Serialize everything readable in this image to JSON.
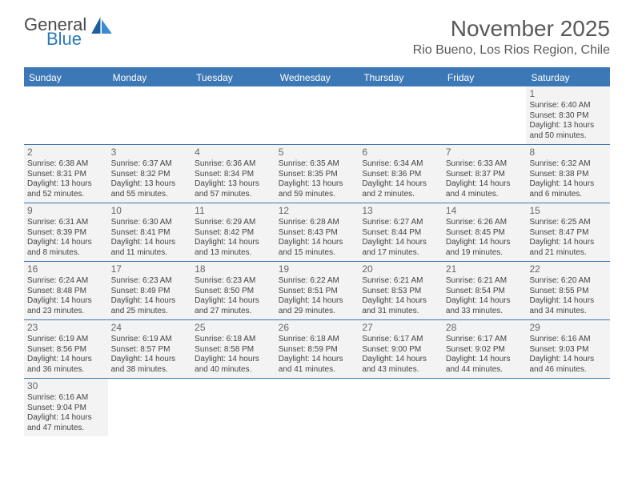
{
  "logo": {
    "text1": "General",
    "text2": "Blue"
  },
  "title": "November 2025",
  "location": "Rio Bueno, Los Rios Region, Chile",
  "colors": {
    "header_bg": "#3b78b5",
    "cell_bg": "#f3f3f3",
    "text": "#444444",
    "title_color": "#595959"
  },
  "day_labels": [
    "Sunday",
    "Monday",
    "Tuesday",
    "Wednesday",
    "Thursday",
    "Friday",
    "Saturday"
  ],
  "weeks": [
    [
      null,
      null,
      null,
      null,
      null,
      null,
      {
        "n": "1",
        "sr": "Sunrise: 6:40 AM",
        "ss": "Sunset: 8:30 PM",
        "dl": "Daylight: 13 hours and 50 minutes."
      }
    ],
    [
      {
        "n": "2",
        "sr": "Sunrise: 6:38 AM",
        "ss": "Sunset: 8:31 PM",
        "dl": "Daylight: 13 hours and 52 minutes."
      },
      {
        "n": "3",
        "sr": "Sunrise: 6:37 AM",
        "ss": "Sunset: 8:32 PM",
        "dl": "Daylight: 13 hours and 55 minutes."
      },
      {
        "n": "4",
        "sr": "Sunrise: 6:36 AM",
        "ss": "Sunset: 8:34 PM",
        "dl": "Daylight: 13 hours and 57 minutes."
      },
      {
        "n": "5",
        "sr": "Sunrise: 6:35 AM",
        "ss": "Sunset: 8:35 PM",
        "dl": "Daylight: 13 hours and 59 minutes."
      },
      {
        "n": "6",
        "sr": "Sunrise: 6:34 AM",
        "ss": "Sunset: 8:36 PM",
        "dl": "Daylight: 14 hours and 2 minutes."
      },
      {
        "n": "7",
        "sr": "Sunrise: 6:33 AM",
        "ss": "Sunset: 8:37 PM",
        "dl": "Daylight: 14 hours and 4 minutes."
      },
      {
        "n": "8",
        "sr": "Sunrise: 6:32 AM",
        "ss": "Sunset: 8:38 PM",
        "dl": "Daylight: 14 hours and 6 minutes."
      }
    ],
    [
      {
        "n": "9",
        "sr": "Sunrise: 6:31 AM",
        "ss": "Sunset: 8:39 PM",
        "dl": "Daylight: 14 hours and 8 minutes."
      },
      {
        "n": "10",
        "sr": "Sunrise: 6:30 AM",
        "ss": "Sunset: 8:41 PM",
        "dl": "Daylight: 14 hours and 11 minutes."
      },
      {
        "n": "11",
        "sr": "Sunrise: 6:29 AM",
        "ss": "Sunset: 8:42 PM",
        "dl": "Daylight: 14 hours and 13 minutes."
      },
      {
        "n": "12",
        "sr": "Sunrise: 6:28 AM",
        "ss": "Sunset: 8:43 PM",
        "dl": "Daylight: 14 hours and 15 minutes."
      },
      {
        "n": "13",
        "sr": "Sunrise: 6:27 AM",
        "ss": "Sunset: 8:44 PM",
        "dl": "Daylight: 14 hours and 17 minutes."
      },
      {
        "n": "14",
        "sr": "Sunrise: 6:26 AM",
        "ss": "Sunset: 8:45 PM",
        "dl": "Daylight: 14 hours and 19 minutes."
      },
      {
        "n": "15",
        "sr": "Sunrise: 6:25 AM",
        "ss": "Sunset: 8:47 PM",
        "dl": "Daylight: 14 hours and 21 minutes."
      }
    ],
    [
      {
        "n": "16",
        "sr": "Sunrise: 6:24 AM",
        "ss": "Sunset: 8:48 PM",
        "dl": "Daylight: 14 hours and 23 minutes."
      },
      {
        "n": "17",
        "sr": "Sunrise: 6:23 AM",
        "ss": "Sunset: 8:49 PM",
        "dl": "Daylight: 14 hours and 25 minutes."
      },
      {
        "n": "18",
        "sr": "Sunrise: 6:23 AM",
        "ss": "Sunset: 8:50 PM",
        "dl": "Daylight: 14 hours and 27 minutes."
      },
      {
        "n": "19",
        "sr": "Sunrise: 6:22 AM",
        "ss": "Sunset: 8:51 PM",
        "dl": "Daylight: 14 hours and 29 minutes."
      },
      {
        "n": "20",
        "sr": "Sunrise: 6:21 AM",
        "ss": "Sunset: 8:53 PM",
        "dl": "Daylight: 14 hours and 31 minutes."
      },
      {
        "n": "21",
        "sr": "Sunrise: 6:21 AM",
        "ss": "Sunset: 8:54 PM",
        "dl": "Daylight: 14 hours and 33 minutes."
      },
      {
        "n": "22",
        "sr": "Sunrise: 6:20 AM",
        "ss": "Sunset: 8:55 PM",
        "dl": "Daylight: 14 hours and 34 minutes."
      }
    ],
    [
      {
        "n": "23",
        "sr": "Sunrise: 6:19 AM",
        "ss": "Sunset: 8:56 PM",
        "dl": "Daylight: 14 hours and 36 minutes."
      },
      {
        "n": "24",
        "sr": "Sunrise: 6:19 AM",
        "ss": "Sunset: 8:57 PM",
        "dl": "Daylight: 14 hours and 38 minutes."
      },
      {
        "n": "25",
        "sr": "Sunrise: 6:18 AM",
        "ss": "Sunset: 8:58 PM",
        "dl": "Daylight: 14 hours and 40 minutes."
      },
      {
        "n": "26",
        "sr": "Sunrise: 6:18 AM",
        "ss": "Sunset: 8:59 PM",
        "dl": "Daylight: 14 hours and 41 minutes."
      },
      {
        "n": "27",
        "sr": "Sunrise: 6:17 AM",
        "ss": "Sunset: 9:00 PM",
        "dl": "Daylight: 14 hours and 43 minutes."
      },
      {
        "n": "28",
        "sr": "Sunrise: 6:17 AM",
        "ss": "Sunset: 9:02 PM",
        "dl": "Daylight: 14 hours and 44 minutes."
      },
      {
        "n": "29",
        "sr": "Sunrise: 6:16 AM",
        "ss": "Sunset: 9:03 PM",
        "dl": "Daylight: 14 hours and 46 minutes."
      }
    ],
    [
      {
        "n": "30",
        "sr": "Sunrise: 6:16 AM",
        "ss": "Sunset: 9:04 PM",
        "dl": "Daylight: 14 hours and 47 minutes."
      },
      null,
      null,
      null,
      null,
      null,
      null
    ]
  ]
}
